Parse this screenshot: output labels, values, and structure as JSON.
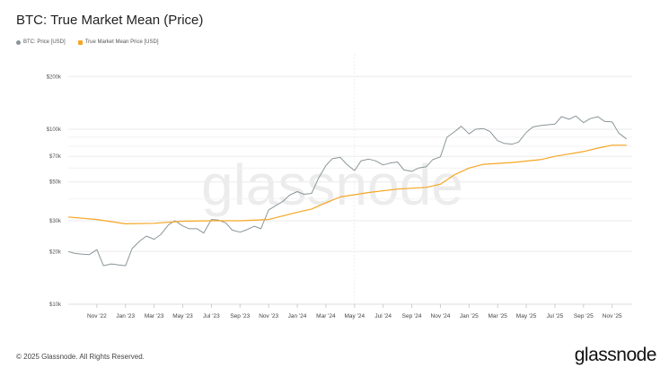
{
  "chart_data": {
    "type": "line",
    "title": "BTC: True Market Mean (Price)",
    "y_scale": "log",
    "ylim": [
      10000,
      200000
    ],
    "y_ticks": [
      10000,
      20000,
      30000,
      50000,
      70000,
      100000,
      200000
    ],
    "y_tick_labels": [
      "$10k",
      "$20k",
      "$30k",
      "$50k",
      "$70k",
      "$100k",
      "$200k"
    ],
    "x_ticks": [
      "2022-11-01",
      "2023-01-01",
      "2023-03-01",
      "2023-05-01",
      "2023-07-01",
      "2023-09-01",
      "2023-11-01",
      "2024-01-01",
      "2024-03-01",
      "2024-05-01",
      "2024-07-01",
      "2024-09-01",
      "2024-11-01",
      "2025-01-01",
      "2025-03-01",
      "2025-05-01",
      "2025-07-01",
      "2025-09-01",
      "2025-11-01"
    ],
    "x_tick_labels": [
      "Nov '22",
      "Jan '23",
      "Mar '23",
      "May '23",
      "Jul '23",
      "Sep '23",
      "Nov '23",
      "Jan '24",
      "Mar '24",
      "May '24",
      "Jul '24",
      "Sep '24",
      "Nov '24",
      "Jan '25",
      "Mar '25",
      "May '25",
      "Jul '25",
      "Sep '25",
      "Nov '25"
    ],
    "grid": true,
    "legend_placement": "top-left",
    "watermark": "glassnode",
    "series": [
      {
        "name": "BTC: Price [USD]",
        "color": "#8a9598",
        "x": [
          "2022-09-01",
          "2022-09-15",
          "2022-10-01",
          "2022-10-15",
          "2022-11-01",
          "2022-11-15",
          "2022-12-01",
          "2022-12-15",
          "2023-01-01",
          "2023-01-15",
          "2023-02-01",
          "2023-02-15",
          "2023-03-01",
          "2023-03-15",
          "2023-04-01",
          "2023-04-15",
          "2023-05-01",
          "2023-05-15",
          "2023-06-01",
          "2023-06-15",
          "2023-07-01",
          "2023-07-15",
          "2023-08-01",
          "2023-08-15",
          "2023-09-01",
          "2023-09-15",
          "2023-10-01",
          "2023-10-15",
          "2023-11-01",
          "2023-11-15",
          "2023-12-01",
          "2023-12-15",
          "2024-01-01",
          "2024-01-15",
          "2024-02-01",
          "2024-02-15",
          "2024-03-01",
          "2024-03-15",
          "2024-04-01",
          "2024-04-15",
          "2024-05-01",
          "2024-05-15",
          "2024-06-01",
          "2024-06-15",
          "2024-07-01",
          "2024-07-15",
          "2024-08-01",
          "2024-08-15",
          "2024-09-01",
          "2024-09-15",
          "2024-10-01",
          "2024-10-15",
          "2024-11-01",
          "2024-11-15",
          "2024-12-01",
          "2024-12-15",
          "2025-01-01",
          "2025-01-15",
          "2025-02-01",
          "2025-02-15",
          "2025-03-01",
          "2025-03-15",
          "2025-04-01",
          "2025-04-15",
          "2025-05-01",
          "2025-05-15",
          "2025-06-01",
          "2025-06-15",
          "2025-07-01",
          "2025-07-15",
          "2025-08-01",
          "2025-08-15",
          "2025-09-01",
          "2025-09-15",
          "2025-10-01",
          "2025-10-15",
          "2025-11-01",
          "2025-11-15",
          "2025-12-01"
        ],
        "y": [
          20000,
          19500,
          19300,
          19200,
          20500,
          16600,
          17000,
          16800,
          16600,
          20800,
          23000,
          24500,
          23500,
          25000,
          28400,
          30000,
          28000,
          27000,
          27000,
          25500,
          30500,
          30300,
          29200,
          26500,
          25800,
          26600,
          27900,
          27000,
          34600,
          36500,
          38700,
          42000,
          44000,
          42500,
          43000,
          52000,
          62000,
          68000,
          69000,
          63000,
          58000,
          66000,
          67500,
          66000,
          62500,
          64000,
          65000,
          58500,
          57500,
          60000,
          61000,
          67000,
          69500,
          90000,
          97000,
          104000,
          94000,
          100000,
          101000,
          97000,
          86000,
          83000,
          82000,
          84500,
          96000,
          103000,
          105000,
          106000,
          107000,
          118000,
          114000,
          119000,
          109000,
          115000,
          118000,
          111000,
          110000,
          95000,
          88000
        ]
      },
      {
        "name": "True Market Mean Price [USD]",
        "color": "#f5a623",
        "x": [
          "2022-09-01",
          "2022-11-01",
          "2023-01-01",
          "2023-03-01",
          "2023-05-01",
          "2023-07-01",
          "2023-09-01",
          "2023-11-01",
          "2024-01-01",
          "2024-02-01",
          "2024-03-01",
          "2024-04-01",
          "2024-06-01",
          "2024-08-01",
          "2024-10-01",
          "2024-11-01",
          "2024-12-01",
          "2025-01-01",
          "2025-02-01",
          "2025-04-01",
          "2025-06-01",
          "2025-07-01",
          "2025-09-01",
          "2025-10-01",
          "2025-11-01",
          "2025-12-01"
        ],
        "y": [
          31500,
          30500,
          28800,
          29000,
          29800,
          30000,
          30000,
          30500,
          33500,
          35000,
          38000,
          41000,
          43500,
          45500,
          46500,
          48500,
          55000,
          60000,
          63000,
          64500,
          67000,
          70000,
          74500,
          78000,
          81000,
          81000
        ]
      }
    ]
  },
  "footer": {
    "copyright": "© 2025 Glassnode. All Rights Reserved.",
    "logo": "glassnode"
  }
}
